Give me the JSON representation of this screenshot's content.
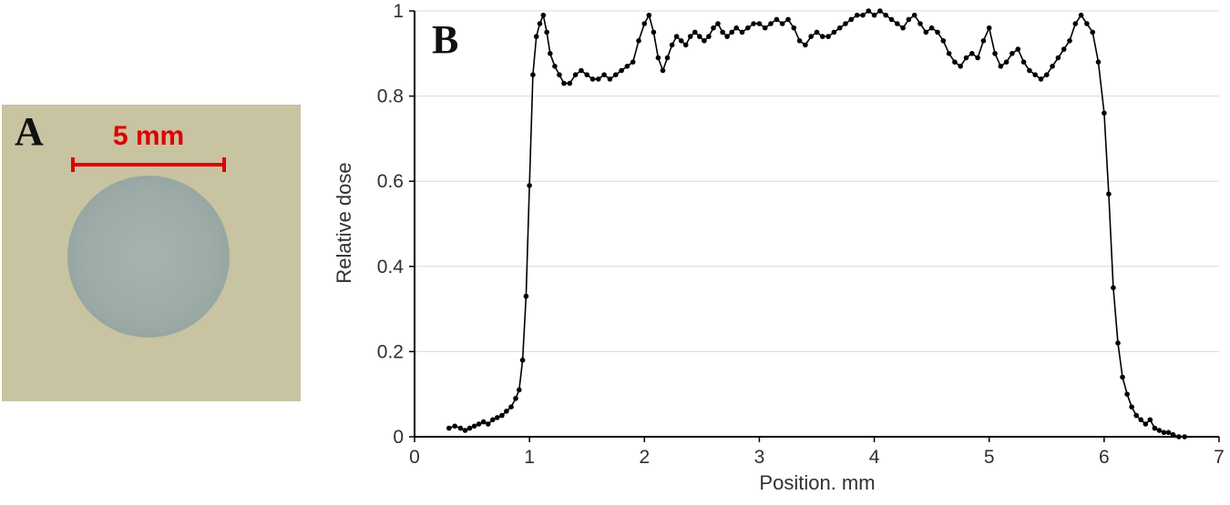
{
  "panel_a": {
    "label": "A",
    "scale_bar_label": "5 mm",
    "colors": {
      "film_bg": "#c8c3a0",
      "spot_center": "#a7b3ae",
      "spot": "#9daca8",
      "spot_edge": "#93a39f",
      "scale_bar": "#dd0000"
    }
  },
  "panel_b": {
    "label": "B"
  },
  "chart_data": {
    "type": "line",
    "title": "",
    "xlabel": "Position. mm",
    "ylabel": "Relative dose",
    "xlim": [
      0,
      7
    ],
    "ylim": [
      0,
      1
    ],
    "x_ticks": [
      0,
      1,
      2,
      3,
      4,
      5,
      6,
      7
    ],
    "x_tick_labels": [
      "0",
      "1",
      "2",
      "3",
      "4",
      "5",
      "6",
      "7"
    ],
    "y_ticks": [
      0,
      0.2,
      0.4,
      0.6,
      0.8,
      1
    ],
    "y_tick_labels": [
      "0",
      "0.2",
      "0.4",
      "0.6",
      "0.8",
      "1"
    ],
    "grid": "horizontal",
    "legend": "none",
    "marker": "circle",
    "colors": {
      "line": "#000000",
      "marker": "#000000",
      "grid": "#d9d9d9",
      "axis": "#000000",
      "text": "#303030"
    },
    "points": [
      [
        0.3,
        0.02
      ],
      [
        0.35,
        0.025
      ],
      [
        0.4,
        0.02
      ],
      [
        0.44,
        0.015
      ],
      [
        0.48,
        0.02
      ],
      [
        0.52,
        0.025
      ],
      [
        0.56,
        0.03
      ],
      [
        0.6,
        0.035
      ],
      [
        0.64,
        0.03
      ],
      [
        0.68,
        0.04
      ],
      [
        0.72,
        0.045
      ],
      [
        0.76,
        0.05
      ],
      [
        0.8,
        0.06
      ],
      [
        0.84,
        0.07
      ],
      [
        0.88,
        0.09
      ],
      [
        0.91,
        0.11
      ],
      [
        0.94,
        0.18
      ],
      [
        0.97,
        0.33
      ],
      [
        1.0,
        0.59
      ],
      [
        1.03,
        0.85
      ],
      [
        1.06,
        0.94
      ],
      [
        1.09,
        0.97
      ],
      [
        1.12,
        0.99
      ],
      [
        1.15,
        0.95
      ],
      [
        1.18,
        0.9
      ],
      [
        1.22,
        0.87
      ],
      [
        1.26,
        0.85
      ],
      [
        1.3,
        0.83
      ],
      [
        1.35,
        0.83
      ],
      [
        1.4,
        0.85
      ],
      [
        1.45,
        0.86
      ],
      [
        1.5,
        0.85
      ],
      [
        1.55,
        0.84
      ],
      [
        1.6,
        0.84
      ],
      [
        1.65,
        0.85
      ],
      [
        1.7,
        0.84
      ],
      [
        1.75,
        0.85
      ],
      [
        1.8,
        0.86
      ],
      [
        1.85,
        0.87
      ],
      [
        1.9,
        0.88
      ],
      [
        1.95,
        0.93
      ],
      [
        2.0,
        0.97
      ],
      [
        2.04,
        0.99
      ],
      [
        2.08,
        0.95
      ],
      [
        2.12,
        0.89
      ],
      [
        2.16,
        0.86
      ],
      [
        2.2,
        0.89
      ],
      [
        2.24,
        0.92
      ],
      [
        2.28,
        0.94
      ],
      [
        2.32,
        0.93
      ],
      [
        2.36,
        0.92
      ],
      [
        2.4,
        0.94
      ],
      [
        2.44,
        0.95
      ],
      [
        2.48,
        0.94
      ],
      [
        2.52,
        0.93
      ],
      [
        2.56,
        0.94
      ],
      [
        2.6,
        0.96
      ],
      [
        2.64,
        0.97
      ],
      [
        2.68,
        0.95
      ],
      [
        2.72,
        0.94
      ],
      [
        2.76,
        0.95
      ],
      [
        2.8,
        0.96
      ],
      [
        2.85,
        0.95
      ],
      [
        2.9,
        0.96
      ],
      [
        2.95,
        0.97
      ],
      [
        3.0,
        0.97
      ],
      [
        3.05,
        0.96
      ],
      [
        3.1,
        0.97
      ],
      [
        3.15,
        0.98
      ],
      [
        3.2,
        0.97
      ],
      [
        3.25,
        0.98
      ],
      [
        3.3,
        0.96
      ],
      [
        3.35,
        0.93
      ],
      [
        3.4,
        0.92
      ],
      [
        3.45,
        0.94
      ],
      [
        3.5,
        0.95
      ],
      [
        3.55,
        0.94
      ],
      [
        3.6,
        0.94
      ],
      [
        3.65,
        0.95
      ],
      [
        3.7,
        0.96
      ],
      [
        3.75,
        0.97
      ],
      [
        3.8,
        0.98
      ],
      [
        3.85,
        0.99
      ],
      [
        3.9,
        0.99
      ],
      [
        3.95,
        1.0
      ],
      [
        4.0,
        0.99
      ],
      [
        4.05,
        1.0
      ],
      [
        4.1,
        0.99
      ],
      [
        4.15,
        0.98
      ],
      [
        4.2,
        0.97
      ],
      [
        4.25,
        0.96
      ],
      [
        4.3,
        0.98
      ],
      [
        4.35,
        0.99
      ],
      [
        4.4,
        0.97
      ],
      [
        4.45,
        0.95
      ],
      [
        4.5,
        0.96
      ],
      [
        4.55,
        0.95
      ],
      [
        4.6,
        0.93
      ],
      [
        4.65,
        0.9
      ],
      [
        4.7,
        0.88
      ],
      [
        4.75,
        0.87
      ],
      [
        4.8,
        0.89
      ],
      [
        4.85,
        0.9
      ],
      [
        4.9,
        0.89
      ],
      [
        4.95,
        0.93
      ],
      [
        5.0,
        0.96
      ],
      [
        5.05,
        0.9
      ],
      [
        5.1,
        0.87
      ],
      [
        5.15,
        0.88
      ],
      [
        5.2,
        0.9
      ],
      [
        5.25,
        0.91
      ],
      [
        5.3,
        0.88
      ],
      [
        5.35,
        0.86
      ],
      [
        5.4,
        0.85
      ],
      [
        5.45,
        0.84
      ],
      [
        5.5,
        0.85
      ],
      [
        5.55,
        0.87
      ],
      [
        5.6,
        0.89
      ],
      [
        5.65,
        0.91
      ],
      [
        5.7,
        0.93
      ],
      [
        5.75,
        0.97
      ],
      [
        5.8,
        0.99
      ],
      [
        5.85,
        0.97
      ],
      [
        5.9,
        0.95
      ],
      [
        5.95,
        0.88
      ],
      [
        6.0,
        0.76
      ],
      [
        6.04,
        0.57
      ],
      [
        6.08,
        0.35
      ],
      [
        6.12,
        0.22
      ],
      [
        6.16,
        0.14
      ],
      [
        6.2,
        0.1
      ],
      [
        6.24,
        0.07
      ],
      [
        6.28,
        0.05
      ],
      [
        6.32,
        0.04
      ],
      [
        6.36,
        0.03
      ],
      [
        6.4,
        0.04
      ],
      [
        6.44,
        0.02
      ],
      [
        6.48,
        0.015
      ],
      [
        6.52,
        0.01
      ],
      [
        6.56,
        0.01
      ],
      [
        6.6,
        0.005
      ],
      [
        6.65,
        0.0
      ],
      [
        6.7,
        0.0
      ]
    ]
  }
}
